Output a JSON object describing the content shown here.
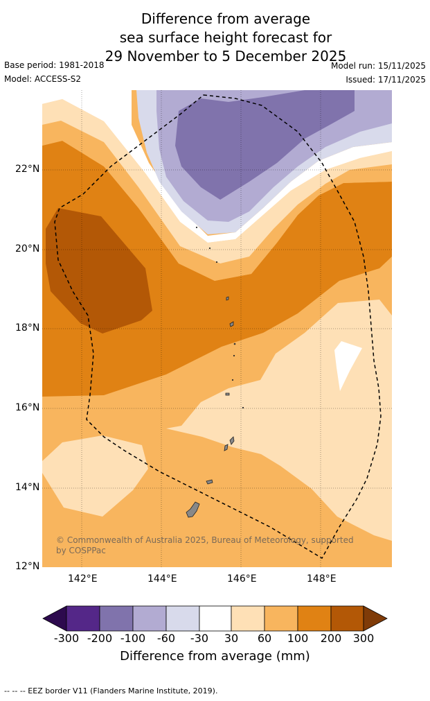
{
  "title": {
    "line1": "Difference from average",
    "line2": "sea surface height forecast for",
    "line3": "29 November to 5 December 2025"
  },
  "meta": {
    "base_period": "Base period: 1981-2018",
    "model": "Model: ACCESS-S2",
    "model_run": "Model run: 15/11/2025",
    "issued": "Issued: 17/11/2025"
  },
  "map": {
    "lat_labels": [
      "22°N",
      "20°N",
      "18°N",
      "16°N",
      "14°N",
      "12°N"
    ],
    "lon_labels": [
      "142°E",
      "144°E",
      "146°E",
      "148°E"
    ],
    "copyright": "© Commonwealth of Australia 2025, Bureau of Meteorology, supported by COSPPac",
    "colors": {
      "c_n300": "#2d0a4e",
      "c_n200": "#542788",
      "c_n100": "#8073ac",
      "c_n60": "#b2abd2",
      "c_n30": "#d8daeb",
      "c_0": "#ffffff",
      "c_30": "#fee0b6",
      "c_60": "#f8b55e",
      "c_100": "#e08214",
      "c_200": "#b35806",
      "c_300": "#7f3b08"
    }
  },
  "colorbar": {
    "tick_labels": [
      "-300",
      "-200",
      "-100",
      "-60",
      "-30",
      "30",
      "60",
      "100",
      "200",
      "300"
    ],
    "title": "Difference from average (mm)"
  },
  "footer": "--  --  -- EEZ border V11 (Flanders Marine Institute, 2019)."
}
